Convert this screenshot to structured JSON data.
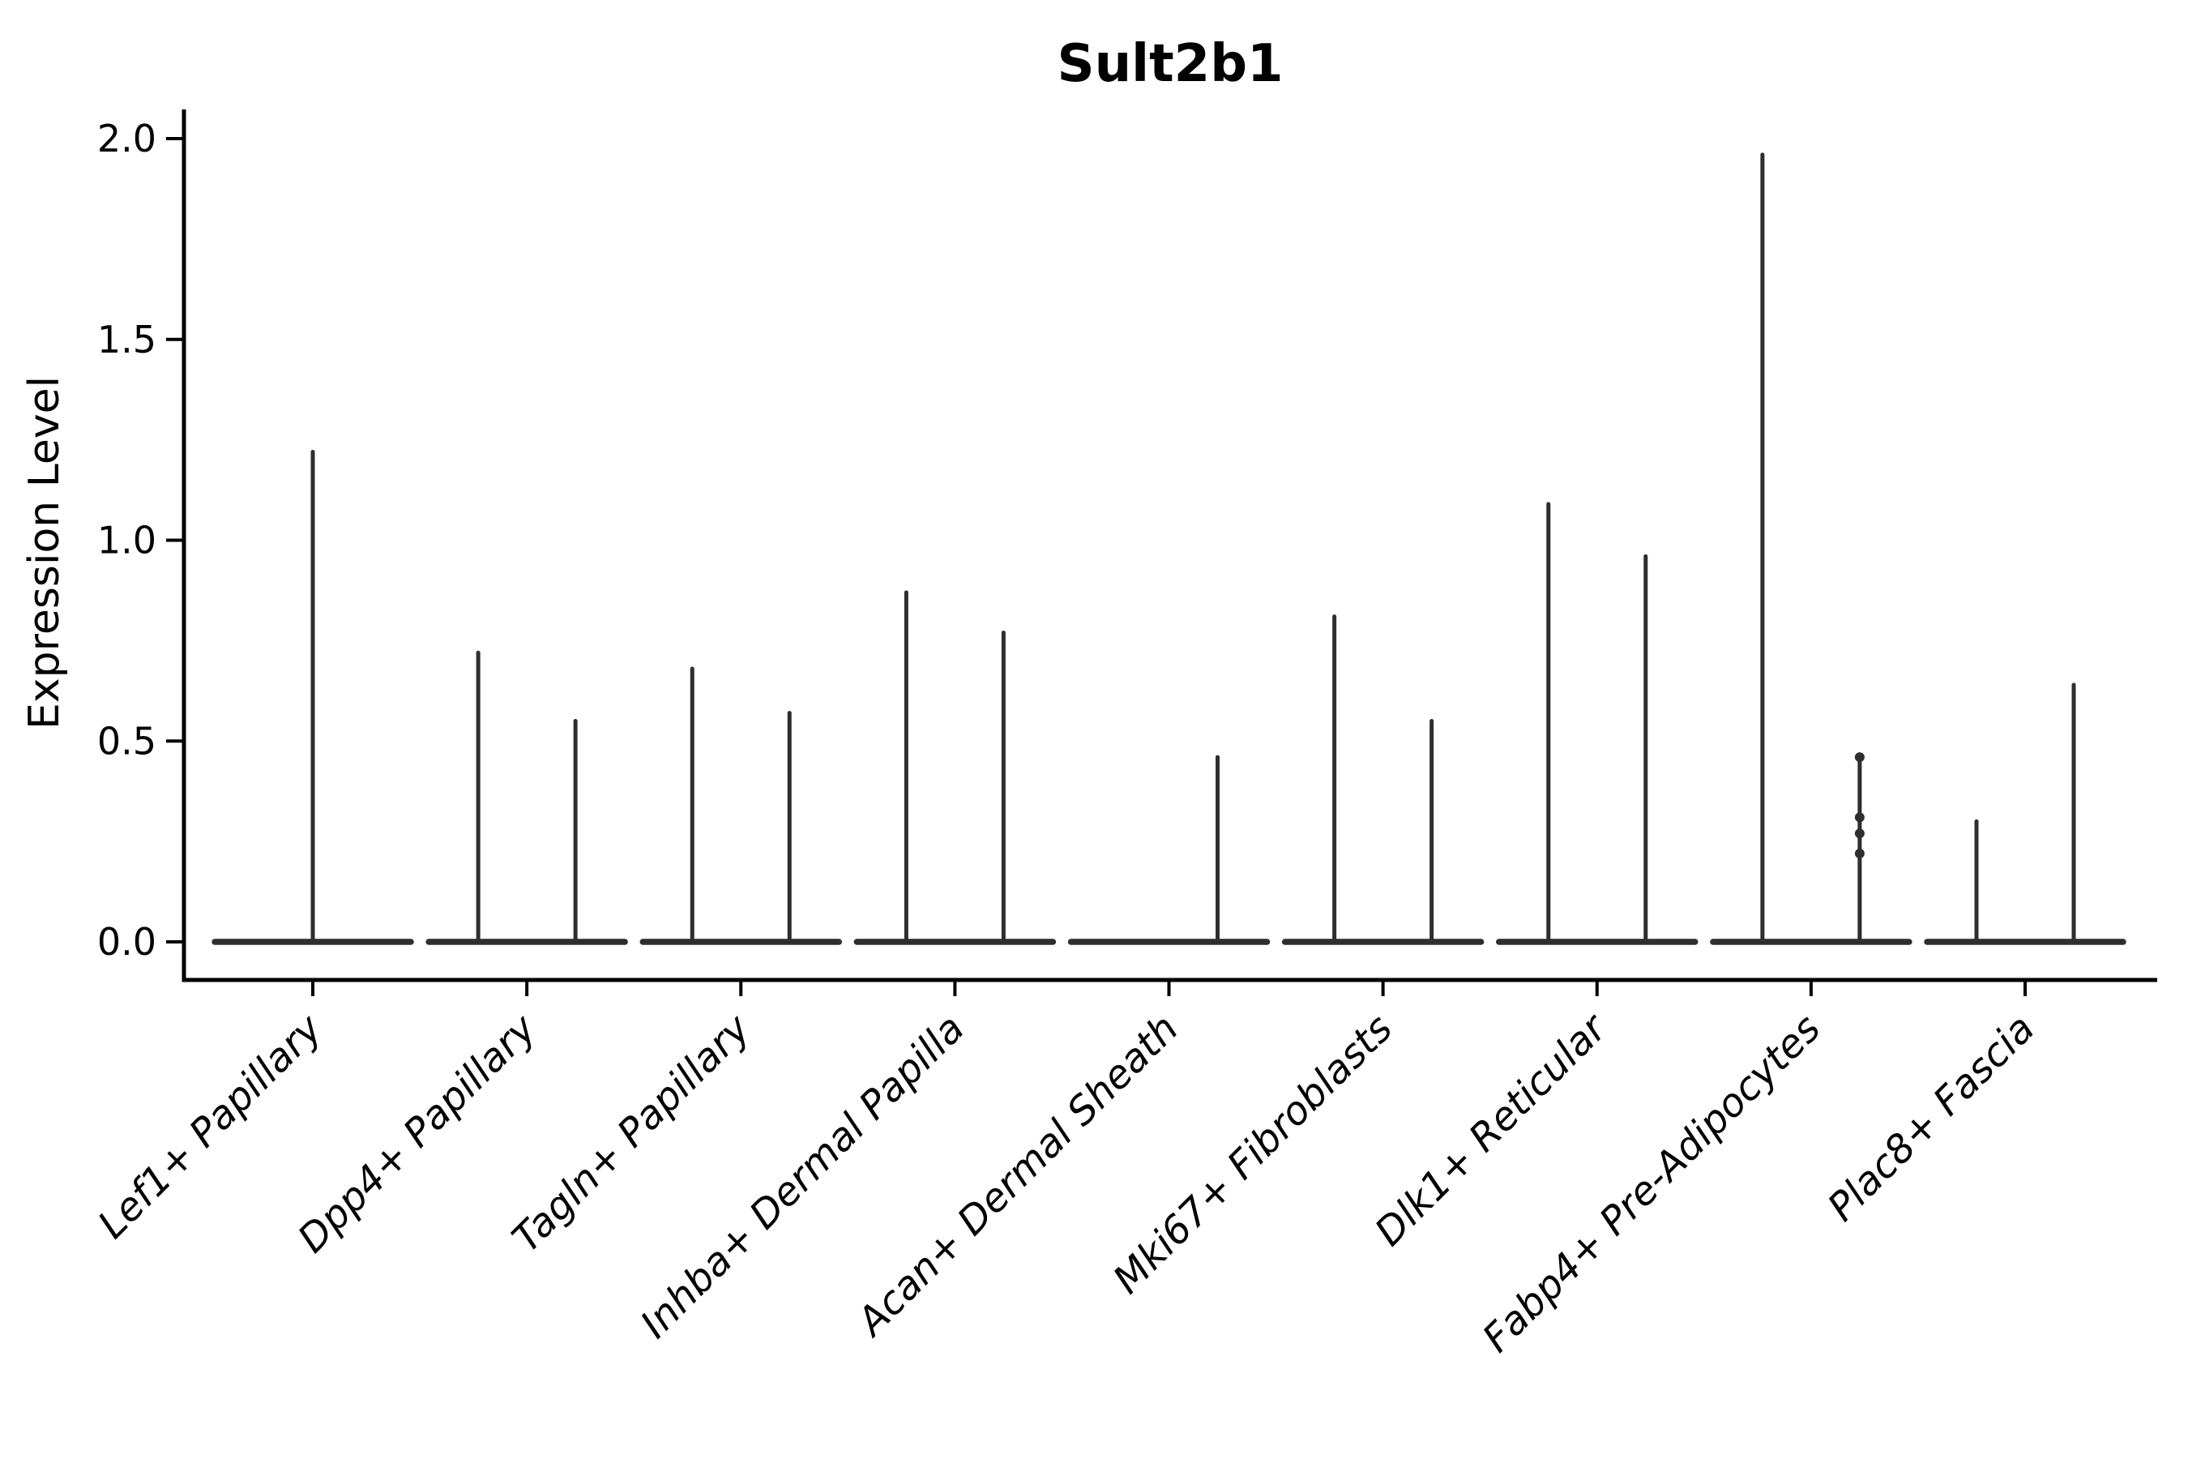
{
  "page": {
    "background": "#ffffff"
  },
  "chart_data": {
    "type": "violin",
    "title": "Sult2b1",
    "ylabel": "Expression Level",
    "xlabel": "",
    "ylim": [
      0,
      2.05
    ],
    "yticks": [
      0.0,
      0.5,
      1.0,
      1.5,
      2.0
    ],
    "ytick_labels": [
      "0.0",
      "0.5",
      "1.0",
      "1.5",
      "2.0"
    ],
    "grid": false,
    "legend": "none",
    "axis_color": "#000000",
    "line_color": "#2e2e2e",
    "categories": [
      "Lef1+ Papillary",
      "Dpp4+ Papillary",
      "Tagln+ Papillary",
      "Inhba+ Dermal Papilla",
      "Acan+ Dermal Sheath",
      "Mki67+ Fibroblasts",
      "Dlk1+ Reticular",
      "Fabp4+ Pre-Adipocytes",
      "Plac8+ Fascia"
    ],
    "violin_groups": [
      {
        "category": "Lef1+ Papillary",
        "violins": [
          {
            "position": "center",
            "max": 1.22
          }
        ]
      },
      {
        "category": "Dpp4+ Papillary",
        "violins": [
          {
            "position": "left",
            "max": 0.72
          },
          {
            "position": "right",
            "max": 0.55
          }
        ]
      },
      {
        "category": "Tagln+ Papillary",
        "violins": [
          {
            "position": "left",
            "max": 0.68
          },
          {
            "position": "right",
            "max": 0.57
          }
        ]
      },
      {
        "category": "Inhba+ Dermal Papilla",
        "violins": [
          {
            "position": "left",
            "max": 0.87
          },
          {
            "position": "right",
            "max": 0.77
          }
        ]
      },
      {
        "category": "Acan+ Dermal Sheath",
        "violins": [
          {
            "position": "right",
            "max": 0.46
          }
        ]
      },
      {
        "category": "Mki67+ Fibroblasts",
        "violins": [
          {
            "position": "left",
            "max": 0.81
          },
          {
            "position": "right",
            "max": 0.55
          }
        ]
      },
      {
        "category": "Dlk1+ Reticular",
        "violins": [
          {
            "position": "left",
            "max": 1.09
          },
          {
            "position": "right",
            "max": 0.96
          }
        ]
      },
      {
        "category": "Fabp4+ Pre-Adipocytes",
        "violins": [
          {
            "position": "left",
            "max": 1.96
          },
          {
            "position": "right",
            "max": 0.46,
            "points": [
              0.46,
              0.31,
              0.27,
              0.22
            ]
          }
        ]
      },
      {
        "category": "Plac8+ Fascia",
        "violins": [
          {
            "position": "left",
            "max": 0.3
          },
          {
            "position": "right",
            "max": 0.64
          }
        ]
      }
    ],
    "description": "Violin plot of Sult2b1 expression; mostly-zero distributions rendered as flat bases with thin density spikes"
  }
}
